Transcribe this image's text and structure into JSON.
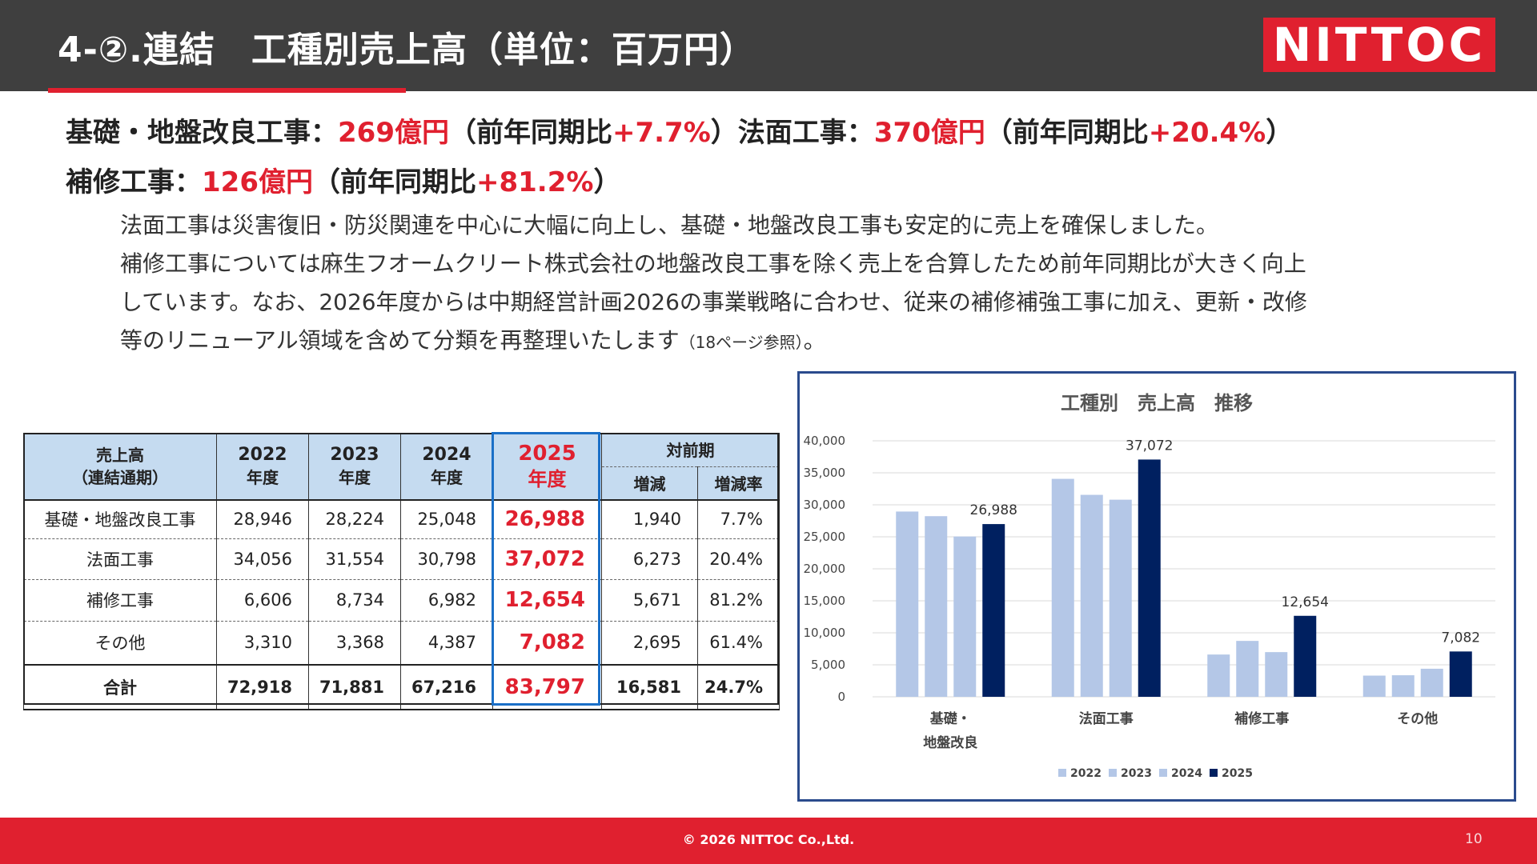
{
  "header": {
    "title": "4-②.連結　工種別売上高（単位：百万円）",
    "logo_text": "NITTOC",
    "accent_color": "#e0202f"
  },
  "headline": {
    "line1": [
      {
        "text": "基礎・地盤改良工事：",
        "red": false
      },
      {
        "text": "269億円",
        "red": true
      },
      {
        "text": "（前年同期比",
        "red": false
      },
      {
        "text": "+7.7%",
        "red": true
      },
      {
        "text": "）法面工事：",
        "red": false
      },
      {
        "text": "370億円",
        "red": true
      },
      {
        "text": "（前年同期比",
        "red": false
      },
      {
        "text": "+20.4%",
        "red": true
      },
      {
        "text": "）",
        "red": false
      }
    ],
    "line2": [
      {
        "text": "補修工事：",
        "red": false
      },
      {
        "text": "126億円",
        "red": true
      },
      {
        "text": "（前年同期比",
        "red": false
      },
      {
        "text": "+81.2%",
        "red": true
      },
      {
        "text": "）",
        "red": false
      }
    ]
  },
  "paragraph": {
    "line1": "法面工事は災害復旧・防災関連を中心に大幅に向上し、基礎・地盤改良工事も安定的に売上を確保しました。",
    "line2": "補修工事については麻生フオームクリート株式会社の地盤改良工事を除く売上を合算したため前年同期比が大きく向上",
    "line3": "しています。なお、2026年度からは中期経営計画2026の事業戦略に合わせ、従来の補修補強工事に加え、更新・改修",
    "line4_main": "等のリニューアル領域を含めて分類を再整理いたします",
    "line4_ref": "（18ページ参照）",
    "line4_end": "。"
  },
  "table": {
    "header": {
      "label_line1": "売上高",
      "label_line2": "（連結通期）",
      "years": [
        {
          "year": "2022",
          "suffix": "年度"
        },
        {
          "year": "2023",
          "suffix": "年度"
        },
        {
          "year": "2024",
          "suffix": "年度"
        },
        {
          "year": "2025",
          "suffix": "年度"
        }
      ],
      "yoy": "対前期",
      "diff": "増減",
      "rate": "増減率"
    },
    "rows": [
      {
        "name": "基礎・地盤改良工事",
        "v2022": "28,946",
        "v2023": "28,224",
        "v2024": "25,048",
        "v2025": "26,988",
        "diff": "1,940",
        "rate": "7.7%"
      },
      {
        "name": "法面工事",
        "v2022": "34,056",
        "v2023": "31,554",
        "v2024": "30,798",
        "v2025": "37,072",
        "diff": "6,273",
        "rate": "20.4%"
      },
      {
        "name": "補修工事",
        "v2022": "6,606",
        "v2023": "8,734",
        "v2024": "6,982",
        "v2025": "12,654",
        "diff": "5,671",
        "rate": "81.2%"
      },
      {
        "name": "その他",
        "v2022": "3,310",
        "v2023": "3,368",
        "v2024": "4,387",
        "v2025": "7,082",
        "diff": "2,695",
        "rate": "61.4%"
      }
    ],
    "total": {
      "name": "合計",
      "v2022": "72,918",
      "v2023": "71,881",
      "v2024": "67,216",
      "v2025": "83,797",
      "diff": "16,581",
      "rate": "24.7%"
    }
  },
  "chart_data": {
    "type": "bar",
    "title": "工種別　売上高　推移",
    "categories": [
      [
        "基礎・",
        "地盤改良"
      ],
      [
        "法面工事"
      ],
      [
        "補修工事"
      ],
      [
        "その他"
      ]
    ],
    "series": [
      {
        "name": "2022",
        "values": [
          28946,
          34056,
          6606,
          3310
        ],
        "color": "#b4c7e7"
      },
      {
        "name": "2023",
        "values": [
          28224,
          31554,
          8734,
          3368
        ],
        "color": "#b4c7e7"
      },
      {
        "name": "2024",
        "values": [
          25048,
          30798,
          6982,
          4387
        ],
        "color": "#b4c7e7"
      },
      {
        "name": "2025",
        "values": [
          26988,
          37072,
          12654,
          7082
        ],
        "color": "#002060"
      }
    ],
    "data_labels": {
      "series": "2025",
      "texts": [
        "26,988",
        "37,072",
        "12,654",
        "7,082"
      ]
    },
    "ylim": [
      0,
      40000
    ],
    "yticks": [
      0,
      5000,
      10000,
      15000,
      20000,
      25000,
      30000,
      35000,
      40000
    ],
    "ytick_labels": [
      "0",
      "5,000",
      "10,000",
      "15,000",
      "20,000",
      "25,000",
      "30,000",
      "35,000",
      "40,000"
    ],
    "grid": true,
    "legend": "bottom",
    "xlabel": "",
    "ylabel": ""
  },
  "footer": {
    "copyright": "© 2026 NITTOC Co.,Ltd.",
    "page": "10"
  }
}
